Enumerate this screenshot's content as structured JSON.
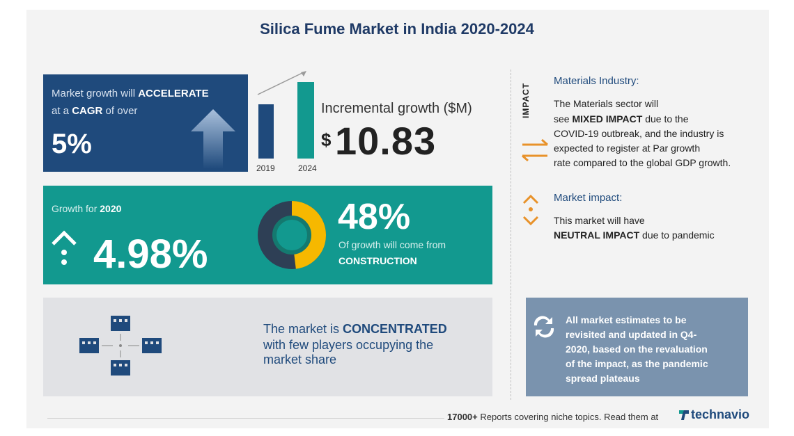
{
  "title": "Silica Fume Market in India 2020-2024",
  "cagr_box": {
    "line1_prefix": "Market growth will",
    "line1_bold": "ACCELERATE",
    "line2_prefix": "at a",
    "line2_bold": "CAGR",
    "line2_suffix": "of over",
    "value": "5%"
  },
  "incremental": {
    "label": "Incremental growth ($M)",
    "currency": "$",
    "value": "10.83",
    "year_start": "2019",
    "year_end": "2024"
  },
  "growth_box": {
    "label_prefix": "Growth for",
    "label_year": "2020",
    "value": "4.98%",
    "share_value": "48%",
    "share_text": "Of growth will come from",
    "share_segment": "CONSTRUCTION",
    "share_fraction": 0.48
  },
  "concentration": {
    "prefix": "The market is",
    "bold": "CONCENTRATED",
    "line2": "with few players occupying the",
    "line3": "market share"
  },
  "impact": {
    "vertical_label": "IMPACT",
    "industry_heading": "Materials Industry:",
    "industry_l1": "The Materials sector will",
    "industry_l2_prefix": "see",
    "industry_l2_bold": "MIXED IMPACT",
    "industry_l2_suffix": "due to the",
    "industry_l3": "COVID-19 outbreak, and the industry is",
    "industry_l4": "expected to register at Par growth",
    "industry_l5": "rate compared to the global GDP growth.",
    "market_heading": "Market impact:",
    "market_l1": "This market will have",
    "market_l2_bold": "NEUTRAL IMPACT",
    "market_l2_suffix": "due to pandemic"
  },
  "note": {
    "l1": "All market estimates to be",
    "l2": "revisited and updated in Q4-",
    "l3": "2020, based on the revaluation",
    "l4": "of the impact, as the pandemic",
    "l5": "spread plateaus"
  },
  "footer": {
    "count": "17000+",
    "text": "Reports covering niche topics. Read them at",
    "brand": "technavio"
  },
  "colors": {
    "navy": "#1f4a7c",
    "teal": "#12998f",
    "yellow": "#f6b800",
    "orange": "#e8922a",
    "title": "#1f3a66"
  }
}
